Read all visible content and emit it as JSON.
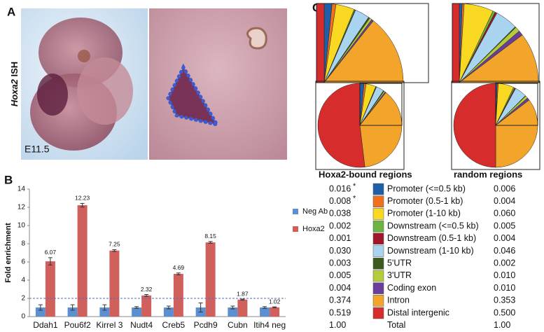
{
  "panel_a": {
    "label": "A",
    "stain_gene": "Hoxa2",
    "stain_text": "ISH",
    "stage": "E11.5"
  },
  "panel_b": {
    "label": "B"
  },
  "panel_c": {
    "label": "C",
    "total_text": "Total"
  },
  "chart_data": [
    {
      "type": "bar",
      "y_label": "Fold enrichment",
      "categories": [
        "Ddah1",
        "Pou6f2",
        "Kirrel 3",
        "Nudt4",
        "Creb5",
        "Pcdh9",
        "Cubn",
        "Itih4 neg"
      ],
      "series": [
        {
          "name": "Neg Ab",
          "color": "#5b8fd0",
          "values": [
            1,
            1,
            1,
            1,
            1,
            1,
            1,
            1
          ],
          "errors": [
            0.3,
            0.3,
            0.3,
            0.1,
            0.15,
            0.5,
            0.15,
            0.1
          ]
        },
        {
          "name": "Hoxa2",
          "color": "#d0605c",
          "values": [
            6.07,
            12.23,
            7.25,
            2.32,
            4.69,
            8.15,
            1.87,
            1.02
          ],
          "errors": [
            0.4,
            0.2,
            0.1,
            0.1,
            0.1,
            0.1,
            0.05,
            0.05
          ]
        }
      ],
      "threshold": 2,
      "ylim": [
        0,
        14
      ],
      "yticks": [
        0,
        2,
        4,
        6,
        8,
        10,
        12,
        14
      ],
      "show_value_labels_for": "Hoxa2"
    },
    {
      "type": "pie",
      "title": "Hoxa2-bound regions",
      "categories": [
        "Promoter (<=0.5 kb)",
        "Promoter (0.5-1 kb)",
        "Promoter (1-10 kb)",
        "Downstream (<=0.5 kb)",
        "Downstream (0.5-1 kb)",
        "Downstream (1-10 kb)",
        "5'UTR",
        "3'UTR",
        "Coding exon",
        "Intron",
        "Distal intergenic"
      ],
      "colors": [
        "#1f5fa8",
        "#f07020",
        "#f8d820",
        "#6cb33f",
        "#a0162a",
        "#a8d4f0",
        "#3c5a1e",
        "#b5cc3a",
        "#6a3d9a",
        "#f2a52a",
        "#d62c2c"
      ],
      "values": [
        0.016,
        0.008,
        0.038,
        0.002,
        0.001,
        0.03,
        0.003,
        0.005,
        0.004,
        0.374,
        0.519
      ],
      "value_labels": [
        "0.016",
        "0.008",
        "0.038",
        "0.002",
        "0.001",
        "0.030",
        "0.003",
        "0.005",
        "0.004",
        "0.374",
        "0.519"
      ],
      "markers": [
        "*",
        "*",
        null,
        null,
        null,
        null,
        null,
        null,
        null,
        null,
        null
      ],
      "total": {
        "value": 1,
        "label": "1.00"
      }
    },
    {
      "type": "pie",
      "title": "random regions",
      "values": [
        0.006,
        0.004,
        0.06,
        0.005,
        0.004,
        0.046,
        0.002,
        0.01,
        0.01,
        0.353,
        0.5
      ],
      "value_labels": [
        "0.006",
        "0.004",
        "0.060",
        "0.005",
        "0.004",
        "0.046",
        "0.002",
        "0.010",
        "0.010",
        "0.353",
        "0.500"
      ],
      "total": {
        "value": 1,
        "label": "1.00"
      }
    }
  ]
}
